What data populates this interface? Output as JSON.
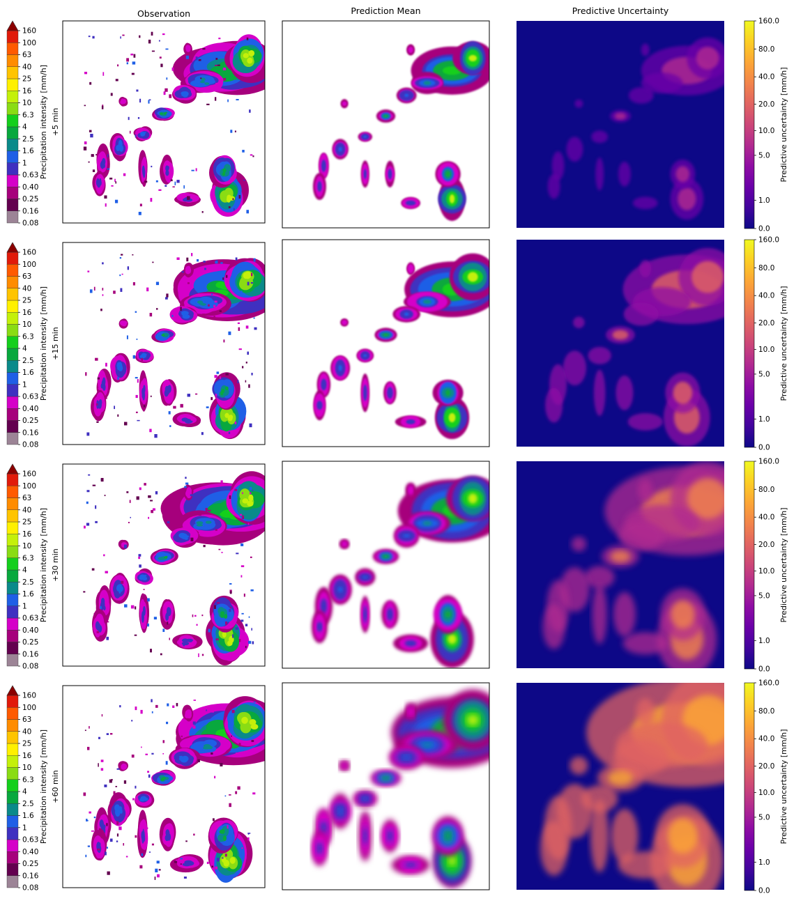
{
  "chart_data": {
    "type": "heatmap",
    "columns": [
      "Observation",
      "Prediction Mean",
      "Predictive Uncertainty"
    ],
    "rows": [
      {
        "lead_time": "+5 min"
      },
      {
        "lead_time": "+15 min"
      },
      {
        "lead_time": "+30 min"
      },
      {
        "lead_time": "+60 min"
      }
    ],
    "intensity_colorbar": {
      "label": "Precipitation intensity [mm/h]",
      "ticks": [
        "0.08",
        "0.16",
        "0.25",
        "0.40",
        "0.63",
        "1",
        "1.6",
        "2.5",
        "4",
        "6.3",
        "10",
        "16",
        "25",
        "40",
        "63",
        "100",
        "160"
      ],
      "colors": [
        "#9c8496",
        "#63004f",
        "#a6007c",
        "#d500c8",
        "#3f30c0",
        "#1f5fe6",
        "#0a8a8a",
        "#08a83e",
        "#14cf1c",
        "#8adc14",
        "#c4f00a",
        "#fff000",
        "#ffc400",
        "#ff8c00",
        "#ff5a00",
        "#e11a0a",
        "#8b0000"
      ],
      "extend": "max"
    },
    "uncertainty_colorbar": {
      "label": "Predictive uncertainty [mm/h]",
      "ticks": [
        "0.0",
        "1.0",
        "5.0",
        "10.0",
        "20.0",
        "40.0",
        "80.0",
        "160.0"
      ],
      "tick_values": [
        0,
        1,
        5,
        10,
        20,
        40,
        80,
        160
      ],
      "colormap": "plasma"
    }
  }
}
